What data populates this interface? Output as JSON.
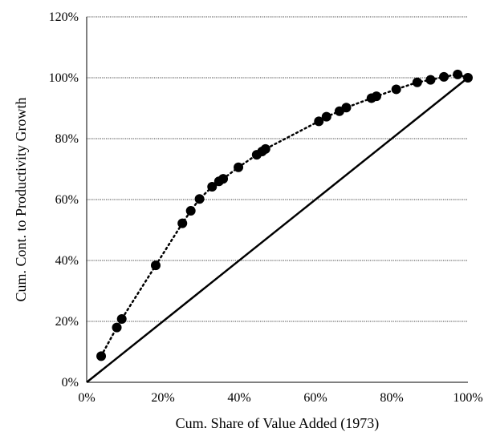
{
  "chart_data": {
    "type": "scatter",
    "title": "",
    "xlabel": "Cum. Share of Value Added (1973)",
    "ylabel": "Cum. Cont. to Productivity Growth",
    "xlim": [
      0,
      100
    ],
    "ylim": [
      0,
      120
    ],
    "x_ticks": [
      "0%",
      "20%",
      "40%",
      "60%",
      "80%",
      "100%"
    ],
    "y_ticks": [
      "0%",
      "20%",
      "40%",
      "60%",
      "80%",
      "100%",
      "120%"
    ],
    "grid": "horizontal dotted",
    "series": [
      {
        "style": "markers with dotted line",
        "points": [
          [
            3.8,
            8.6
          ],
          [
            7.9,
            18.0
          ],
          [
            9.2,
            20.8
          ],
          [
            18.1,
            38.4
          ],
          [
            25.1,
            52.2
          ],
          [
            27.3,
            56.3
          ],
          [
            29.6,
            60.2
          ],
          [
            32.9,
            64.2
          ],
          [
            34.7,
            66.0
          ],
          [
            35.8,
            66.8
          ],
          [
            39.8,
            70.6
          ],
          [
            44.6,
            74.7
          ],
          [
            46.0,
            75.8
          ],
          [
            46.9,
            76.6
          ],
          [
            60.9,
            85.7
          ],
          [
            62.9,
            87.2
          ],
          [
            66.3,
            89.0
          ],
          [
            68.1,
            90.2
          ],
          [
            74.7,
            93.3
          ],
          [
            76.0,
            93.9
          ],
          [
            81.2,
            96.2
          ],
          [
            86.7,
            98.5
          ],
          [
            90.2,
            99.3
          ],
          [
            93.7,
            100.3
          ],
          [
            97.3,
            101.1
          ],
          [
            100.0,
            100.0
          ]
        ]
      },
      {
        "style": "solid line",
        "points": [
          [
            0,
            0
          ],
          [
            100,
            100
          ]
        ]
      }
    ],
    "colors": {
      "markers": "#000000",
      "lines": "#000000",
      "grid": "#000000"
    }
  }
}
